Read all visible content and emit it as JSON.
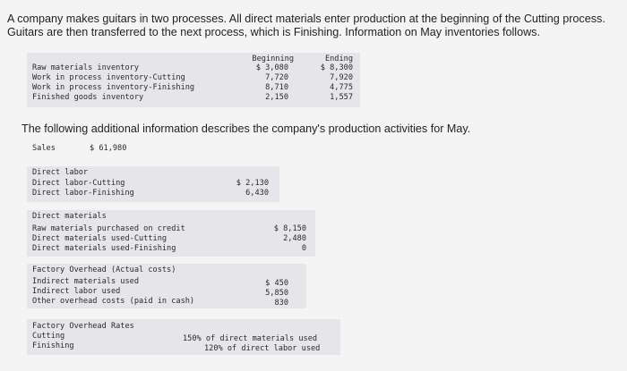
{
  "intro": "A company makes guitars in two processes. All direct materials enter production at the beginning of the Cutting process. Guitars are then transferred to the next process, which is Finishing. Information on May inventories follows.",
  "inventory": {
    "col_beginning": "Beginning",
    "col_ending": "Ending",
    "rows": [
      {
        "label": "Raw materials inventory",
        "beginning": "$ 3,080",
        "ending": "$ 8,300"
      },
      {
        "label": "Work in process inventory-Cutting",
        "beginning": "7,720",
        "ending": "7,920"
      },
      {
        "label": "Work in process inventory-Finishing",
        "beginning": "8,710",
        "ending": "4,775"
      },
      {
        "label": "Finished goods inventory",
        "beginning": "2,150",
        "ending": "1,557"
      }
    ]
  },
  "additional": "The following additional information describes the company's production activities for May.",
  "sales": {
    "label": "Sales",
    "value": "$ 61,980"
  },
  "labor": {
    "title": "Direct labor",
    "rows": [
      {
        "label": "Direct labor-Cutting",
        "value": "$ 2,130"
      },
      {
        "label": "Direct labor-Finishing",
        "value": "6,430"
      }
    ]
  },
  "materials": {
    "title": "Direct materials",
    "rows": [
      {
        "label": "Raw materials purchased on credit",
        "value": "$ 8,150"
      },
      {
        "label": "Direct materials used-Cutting",
        "value": "2,480"
      },
      {
        "label": "Direct materials used-Finishing",
        "value": "0"
      }
    ]
  },
  "overhead": {
    "title": "Factory Overhead (Actual costs)",
    "rows": [
      {
        "label": "Indirect materials used",
        "value": "$ 450"
      },
      {
        "label": "Indirect labor used",
        "value": "5,850"
      },
      {
        "label": "Other overhead costs (paid in cash)",
        "value": "830"
      }
    ]
  },
  "rates": {
    "title": "Factory Overhead Rates",
    "rows": [
      {
        "label": "Cutting",
        "value": "150% of direct materials used"
      },
      {
        "label": "Finishing",
        "value": "120% of direct labor used"
      }
    ]
  }
}
